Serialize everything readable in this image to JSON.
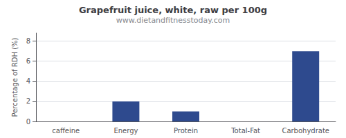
{
  "chart_data": {
    "type": "bar",
    "title": "Grapefruit juice, white, raw per 100g",
    "subtitle": "www.dietandfitnesstoday.com",
    "ylabel": "Percentage of RDH (%)",
    "categories": [
      "caffeine",
      "Energy",
      "Protein",
      "Total-Fat",
      "Carbohydrate"
    ],
    "values": [
      0,
      2,
      1,
      0,
      7
    ],
    "color": "#2e4a8e",
    "ylim": [
      0,
      8.8
    ],
    "yticks": [
      0,
      2,
      4,
      6,
      8
    ],
    "grid": true
  }
}
